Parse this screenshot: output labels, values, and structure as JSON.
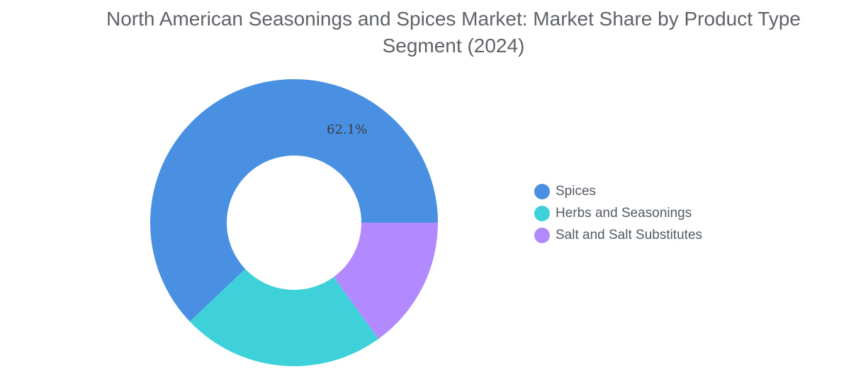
{
  "chart_data": {
    "type": "pie",
    "variant": "donut",
    "title": "North American Seasonings and Spices Market: Market Share by Product Type Segment (2024)",
    "series": [
      {
        "name": "Spices",
        "value": 62.1,
        "color": "#4a90e2",
        "label": "62.1%"
      },
      {
        "name": "Herbs and Seasonings",
        "value": 22.9,
        "color": "#3fd1d9",
        "label": ""
      },
      {
        "name": "Salt and Salt Substitutes",
        "value": 15.0,
        "color": "#b389ff",
        "label": ""
      }
    ],
    "legend_position": "right",
    "start_angle": "3 o'clock",
    "direction": "counterclockwise"
  }
}
